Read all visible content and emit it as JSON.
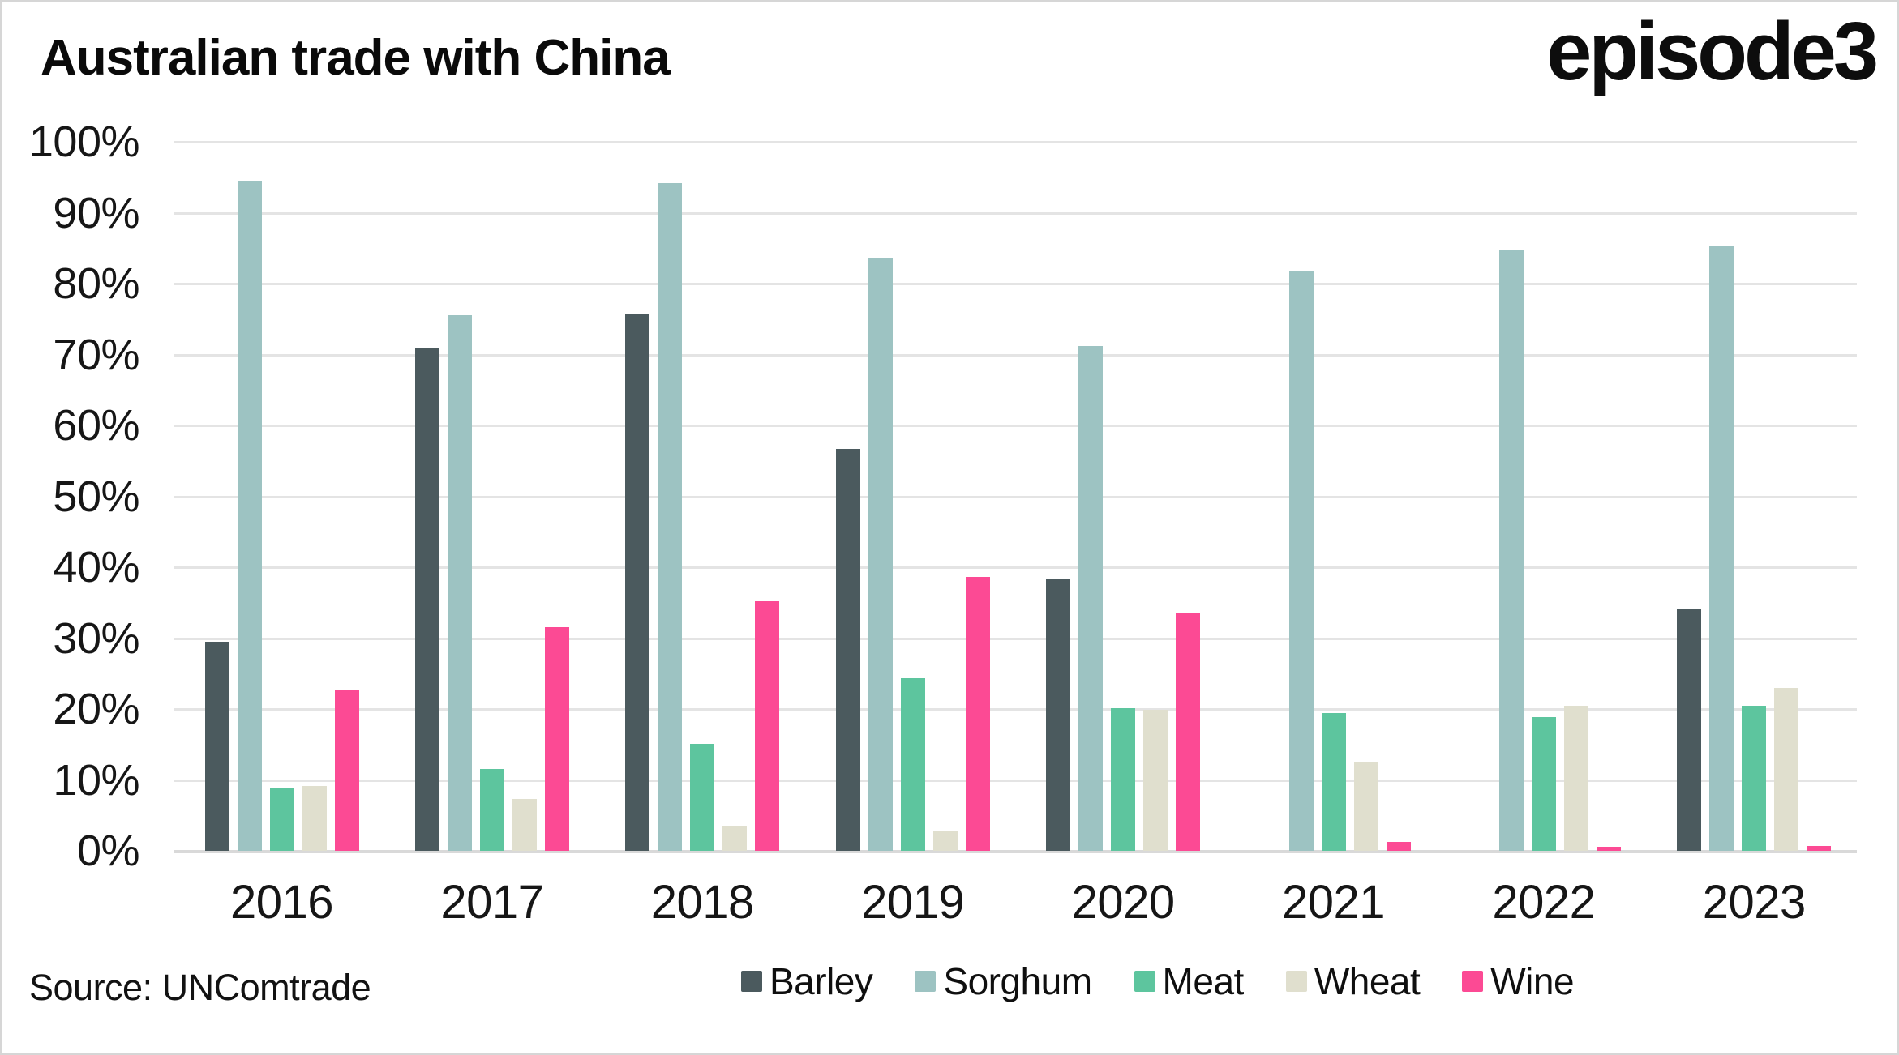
{
  "header": {
    "title": "Australian trade with China",
    "logo": "episode3"
  },
  "source": {
    "label": "Source: UNComtrade"
  },
  "chart_data": {
    "type": "bar",
    "title": "Australian trade with China",
    "categories": [
      "2016",
      "2017",
      "2018",
      "2019",
      "2020",
      "2021",
      "2022",
      "2023"
    ],
    "series": [
      {
        "name": "Barley",
        "color": "#4b5a5e",
        "values": [
          29.5,
          71.0,
          75.7,
          56.7,
          38.3,
          null,
          null,
          34.1
        ]
      },
      {
        "name": "Sorghum",
        "color": "#9dc3c2",
        "values": [
          94.5,
          75.5,
          94.2,
          83.7,
          71.2,
          81.7,
          84.8,
          85.2
        ]
      },
      {
        "name": "Meat",
        "color": "#5dc59e",
        "values": [
          8.8,
          11.5,
          15.1,
          24.3,
          20.1,
          19.4,
          18.9,
          20.5
        ]
      },
      {
        "name": "Wheat",
        "color": "#e0dfce",
        "values": [
          9.1,
          7.3,
          3.5,
          2.8,
          19.9,
          12.4,
          20.4,
          23.0
        ]
      },
      {
        "name": "Wine",
        "color": "#fc4a94",
        "values": [
          22.6,
          31.5,
          35.2,
          38.6,
          33.5,
          1.3,
          0.6,
          0.7
        ]
      }
    ],
    "xlabel": "",
    "ylabel": "",
    "ylim": [
      0,
      100
    ],
    "yticks": [
      "100%",
      "90%",
      "80%",
      "70%",
      "60%",
      "50%",
      "40%",
      "30%",
      "20%",
      "10%",
      "0%"
    ],
    "grid": true,
    "legend_position": "bottom",
    "grid_color": "#e4e4e4",
    "baseline_color": "#d9d9d9"
  }
}
